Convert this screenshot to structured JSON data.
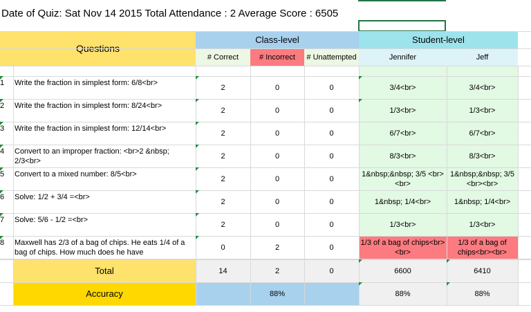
{
  "title": "Date of Quiz: Sat Nov 14 2015 Total Attendance : 2 Average Score : 6505",
  "headers": {
    "questions": "Questions",
    "class_level": "Class-level",
    "student_level": "Student-level",
    "correct": "# Correct",
    "incorrect": "# Incorrect",
    "unattempted": "# Unattempted",
    "students": [
      "Jennifer",
      "Jeff"
    ]
  },
  "rows": [
    {
      "num": "1",
      "question": "Write the fraction in simplest form: 6/8<br>",
      "correct": "2",
      "incorrect": "0",
      "unattempted": "0",
      "jennifer": "3/4<br>",
      "jeff": "3/4<br>"
    },
    {
      "num": "2",
      "question": "Write the fraction in simplest form: 8/24<br>",
      "correct": "2",
      "incorrect": "0",
      "unattempted": "0",
      "jennifer": "1/3<br>",
      "jeff": "1/3<br>"
    },
    {
      "num": "3",
      "question": "Write the fraction in simplest form: 12/14<br>",
      "correct": "2",
      "incorrect": "0",
      "unattempted": "0",
      "jennifer": "6/7<br>",
      "jeff": "6/7<br>"
    },
    {
      "num": "4",
      "question": "Convert to an improper fraction: <br>2 &nbsp; 2/3<br>",
      "correct": "2",
      "incorrect": "0",
      "unattempted": "0",
      "jennifer": "8/3<br>",
      "jeff": "8/3<br>"
    },
    {
      "num": "5",
      "question": "Convert to a mixed number: 8/5<br>",
      "correct": "2",
      "incorrect": "0",
      "unattempted": "0",
      "jennifer": "1&nbsp;&nbsp; 3/5 <br><br>",
      "jeff": "1&nbsp;&nbsp; 3/5 <br><br>"
    },
    {
      "num": "6",
      "question": "Solve: 1/2 + 3/4 =<br>",
      "correct": "2",
      "incorrect": "0",
      "unattempted": "0",
      "jennifer": "1&nbsp; 1/4<br>",
      "jeff": "1&nbsp; 1/4<br>"
    },
    {
      "num": "7",
      "question": "Solve: 5/6 - 1/2 =<br>",
      "correct": "2",
      "incorrect": "0",
      "unattempted": "0",
      "jennifer": "1/3<br>",
      "jeff": "1/3<br>"
    },
    {
      "num": "8",
      "question": "Maxwell has 2/3 of a bag of chips. He eats 1/4 of a bag of chips. How much does he have",
      "correct": "0",
      "incorrect": "2",
      "unattempted": "0",
      "jennifer": "1/3 of a bag of chips<br><br>",
      "jeff": "1/3 of a bag of chips<br><br>"
    }
  ],
  "total": {
    "label": "Total",
    "correct": "14",
    "incorrect": "2",
    "unattempted": "0",
    "jennifer": "6600",
    "jeff": "6410"
  },
  "accuracy": {
    "label": "Accuracy",
    "class": "88%",
    "jennifer": "88%",
    "jeff": "88%"
  },
  "colors": {
    "questions_header": "#ffe26b",
    "class_header": "#a8d1ee",
    "student_header": "#9de3ec",
    "correct_header": "#ecf7e4",
    "incorrect_header": "#fb7b80",
    "unattempted_header": "#ecf7e4",
    "student_name_header": "#ddf3f8",
    "correct_answer": "#e2f9e3",
    "wrong_answer": "#fb7b80",
    "total_bg": "#f0f0f0",
    "total_label": "#ffe26b",
    "accuracy_label": "#ffd800",
    "accuracy_class": "#a8d1ee"
  }
}
